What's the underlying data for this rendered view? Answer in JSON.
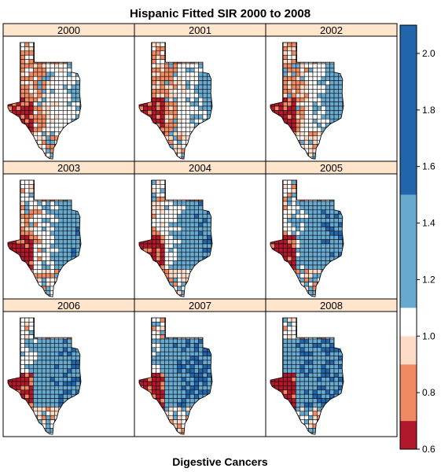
{
  "chart_data": {
    "type": "heatmap",
    "title": "Hispanic Fitted SIR 2000 to 2008",
    "xlabel": "Digestive Cancers",
    "panels": [
      "2000",
      "2001",
      "2002",
      "2003",
      "2004",
      "2005",
      "2006",
      "2007",
      "2008"
    ],
    "colorbar": {
      "breaks": [
        0.6,
        0.7,
        0.9,
        1.0,
        1.1,
        1.5,
        2.1
      ],
      "colors": [
        "#b2182b",
        "#ef8a62",
        "#fddbc7",
        "#ffffff",
        "#67a9cf",
        "#2166ac"
      ],
      "ticks": [
        "0.6",
        "0.8",
        "1.0",
        "1.2",
        "1.4",
        "1.6",
        "1.8",
        "2.0"
      ],
      "range": [
        0.6,
        2.1
      ]
    },
    "panel_strip_color": "#ffe5cc",
    "map_region": "Texas counties"
  }
}
